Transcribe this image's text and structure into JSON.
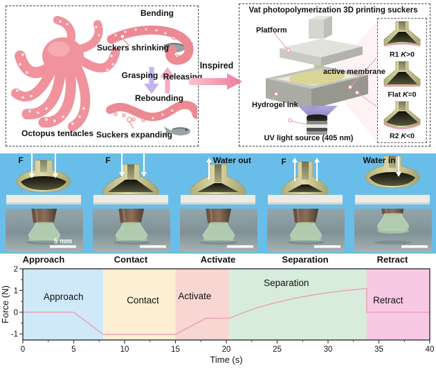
{
  "bio_panel": {
    "caption": "Octopus tentacles",
    "bending": "Bending",
    "suckers_shrinking": "Suckers shrinking",
    "grasping": "Grasping",
    "releasing": "Releasing",
    "rebounding": "Rebounding",
    "suckers_expanding": "Suckers expanding"
  },
  "inspired_label": "Inspired",
  "printing_panel": {
    "title": "Vat photopolymerization 3D printing suckers",
    "platform": "Platform",
    "active_membrane": "active membrane",
    "hydrogel_ink": "Hydrogel ink",
    "uv_source": "UV light source (405 nm)",
    "curvature_insets": [
      {
        "pre": "R1 ",
        "k": "K",
        "post": ">0"
      },
      {
        "pre": "Flat ",
        "k": "K",
        "post": "=0"
      },
      {
        "pre": "R2 ",
        "k": "K",
        "post": "<0"
      }
    ]
  },
  "sequence_panel": {
    "background_color": "#69bee9",
    "scale_label": "5 mm",
    "stages": [
      {
        "label": "Approach",
        "annotation": "F"
      },
      {
        "label": "Contact",
        "annotation": "F"
      },
      {
        "label": "Activate",
        "annotation": "Water out"
      },
      {
        "label": "Separation",
        "annotation": "F"
      },
      {
        "label": "Retract",
        "annotation": "Water in"
      }
    ]
  },
  "chart_data": {
    "type": "line",
    "title": "",
    "xlabel": "Time (s)",
    "ylabel": "Force (N)",
    "xlim": [
      0,
      40
    ],
    "ylim": [
      -1.28,
      2
    ],
    "xticks": [
      0,
      5,
      10,
      15,
      20,
      25,
      30,
      35,
      40
    ],
    "yticks": [
      -1,
      0,
      1,
      2
    ],
    "x_minor_step": 2.5,
    "y_minor_step": 0.5,
    "grid": false,
    "line_color": "#eb9cb7",
    "axis_color": "#3e3e3e",
    "regions": [
      {
        "label": "Approach",
        "from": 0,
        "to": 7.9,
        "color": "#cfe9f8",
        "label_x": 4.0,
        "label_y": 0.69
      },
      {
        "label": "Contact",
        "from": 7.9,
        "to": 15,
        "color": "#fcefd2",
        "label_x": 11.8,
        "label_y": 0.53
      },
      {
        "label": "Activate",
        "from": 15,
        "to": 20.3,
        "color": "#f8d6d2",
        "label_x": 16.9,
        "label_y": 0.72
      },
      {
        "label": "Separation",
        "from": 20.3,
        "to": 33.8,
        "color": "#d8ecdc",
        "label_x": 25.9,
        "label_y": 1.33
      },
      {
        "label": "Retract",
        "from": 33.8,
        "to": 40,
        "color": "#f8c9e5",
        "label_x": 35.9,
        "label_y": 0.53
      }
    ],
    "series": [
      {
        "name": "Force",
        "points": [
          [
            0,
            0
          ],
          [
            5,
            0
          ],
          [
            7.9,
            -1.02
          ],
          [
            15,
            -1.02
          ],
          [
            18,
            -0.28
          ],
          [
            20.3,
            -0.28
          ],
          [
            21.5,
            -0.05
          ],
          [
            23,
            0.2
          ],
          [
            24.5,
            0.4
          ],
          [
            26,
            0.57
          ],
          [
            27.5,
            0.71
          ],
          [
            29,
            0.83
          ],
          [
            30.5,
            0.93
          ],
          [
            32,
            1.01
          ],
          [
            33.3,
            1.07
          ],
          [
            33.8,
            1.09
          ],
          [
            33.8,
            0
          ],
          [
            40,
            0
          ]
        ]
      }
    ]
  }
}
